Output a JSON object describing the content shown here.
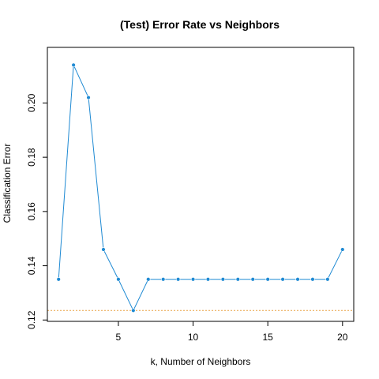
{
  "colors": {
    "series": "#1f8ad3",
    "reference": "#e8a040",
    "axis": "#000000"
  },
  "chart_data": {
    "type": "line",
    "title": "(Test) Error Rate vs Neighbors",
    "xlabel": "k, Number of Neighbors",
    "ylabel": "Classification Error",
    "xlim": [
      0.25,
      20.75
    ],
    "ylim": [
      0.1195,
      0.2205
    ],
    "xticks": [
      5,
      10,
      15,
      20
    ],
    "yticks": [
      0.12,
      0.14,
      0.16,
      0.18,
      0.2
    ],
    "ytick_labels": [
      "0.12",
      "0.14",
      "0.16",
      "0.18",
      "0.20"
    ],
    "grid": false,
    "series": [
      {
        "x": [
          1,
          2,
          3,
          4,
          5,
          6,
          7,
          8,
          9,
          10,
          11,
          12,
          13,
          14,
          15,
          16,
          17,
          18,
          19,
          20
        ],
        "values": [
          0.135,
          0.214,
          0.202,
          0.146,
          0.135,
          0.1235,
          0.135,
          0.135,
          0.135,
          0.135,
          0.135,
          0.135,
          0.135,
          0.135,
          0.135,
          0.135,
          0.135,
          0.135,
          0.135,
          0.146
        ]
      }
    ],
    "reference_line": {
      "orientation": "horizontal",
      "y": 0.1235,
      "style": "dotted"
    }
  }
}
